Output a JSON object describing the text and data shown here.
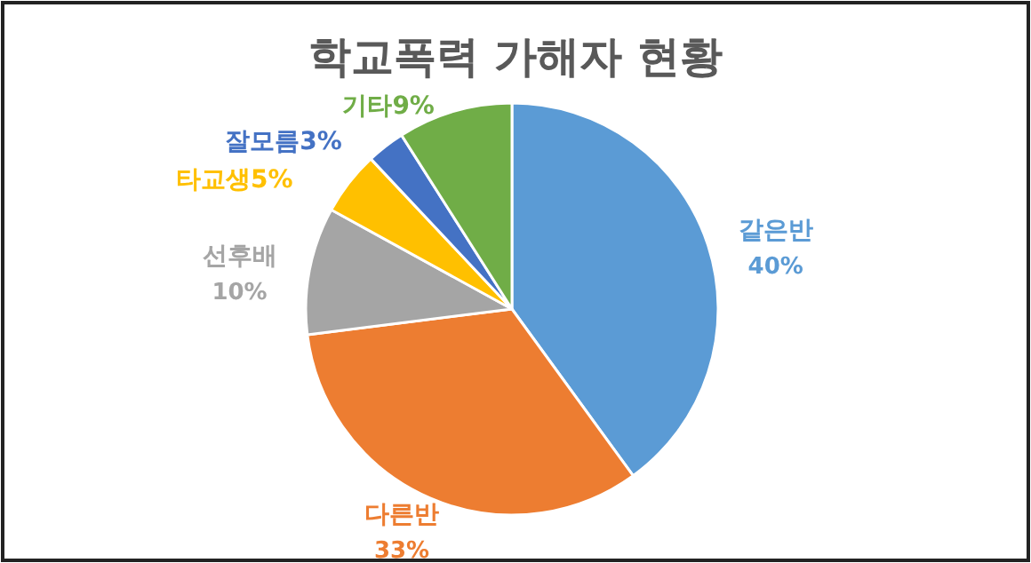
{
  "chart_data": {
    "type": "pie",
    "title": "학교폭력 가해자 현황",
    "categories": [
      "같은반",
      "다른반",
      "선후배",
      "타교생",
      "잘모름",
      "기타"
    ],
    "values": [
      40,
      33,
      10,
      5,
      3,
      9
    ],
    "value_labels": [
      "40%",
      "33%",
      "10%",
      "5%",
      "3%",
      "9%"
    ],
    "colors": [
      "#5b9bd5",
      "#ed7d31",
      "#a5a5a5",
      "#ffc000",
      "#4472c4",
      "#70ad47"
    ]
  }
}
